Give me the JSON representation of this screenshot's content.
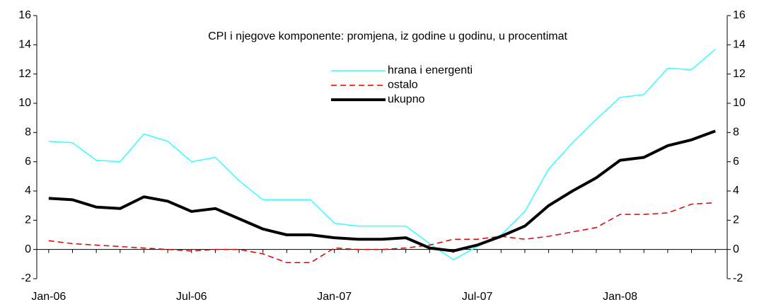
{
  "chart_data": {
    "type": "line",
    "title": "CPI i njegove komponente: promjena, iz godine u godinu, u procentimat",
    "categories": [
      "Jan-06",
      null,
      null,
      null,
      null,
      null,
      "Jul-06",
      null,
      null,
      null,
      null,
      null,
      "Jan-07",
      null,
      null,
      null,
      null,
      null,
      "Jul-07",
      null,
      null,
      null,
      null,
      null,
      "Jan-08",
      null,
      null,
      null,
      null
    ],
    "series": [
      {
        "name": "hrana i energenti",
        "color": "#33ffff",
        "values": [
          7.4,
          7.3,
          6.1,
          6.0,
          7.9,
          7.4,
          6.0,
          6.3,
          4.7,
          3.4,
          3.4,
          3.4,
          1.8,
          1.6,
          1.6,
          1.6,
          0.4,
          -0.7,
          0.2,
          1.0,
          2.6,
          5.5,
          7.3,
          8.9,
          10.4,
          10.6,
          12.4,
          12.3,
          13.7
        ]
      },
      {
        "name": "ostalo",
        "color": "#e00000",
        "dash": true,
        "values": [
          0.6,
          0.4,
          0.3,
          0.2,
          0.1,
          0.0,
          -0.1,
          0.0,
          0.0,
          -0.3,
          -0.9,
          -0.9,
          0.1,
          0.0,
          0.0,
          0.1,
          0.3,
          0.7,
          0.7,
          0.9,
          0.7,
          0.9,
          1.2,
          1.5,
          2.4,
          2.4,
          2.5,
          3.1,
          3.2
        ]
      },
      {
        "name": "ukupno",
        "color": "#000000",
        "width": 4,
        "values": [
          3.5,
          3.4,
          2.9,
          2.8,
          3.6,
          3.3,
          2.6,
          2.8,
          2.1,
          1.4,
          1.0,
          1.0,
          0.8,
          0.7,
          0.7,
          0.8,
          0.1,
          -0.1,
          0.3,
          0.9,
          1.6,
          3.0,
          4.0,
          4.9,
          6.1,
          6.3,
          7.1,
          7.5,
          8.1
        ]
      }
    ],
    "ylim": [
      -2,
      16
    ],
    "yticks": [
      -2,
      0,
      2,
      4,
      6,
      8,
      10,
      12,
      14,
      16
    ],
    "y2lim": [
      -2,
      16
    ],
    "y2ticks": [
      -2,
      0,
      2,
      4,
      6,
      8,
      10,
      12,
      14,
      16
    ]
  }
}
